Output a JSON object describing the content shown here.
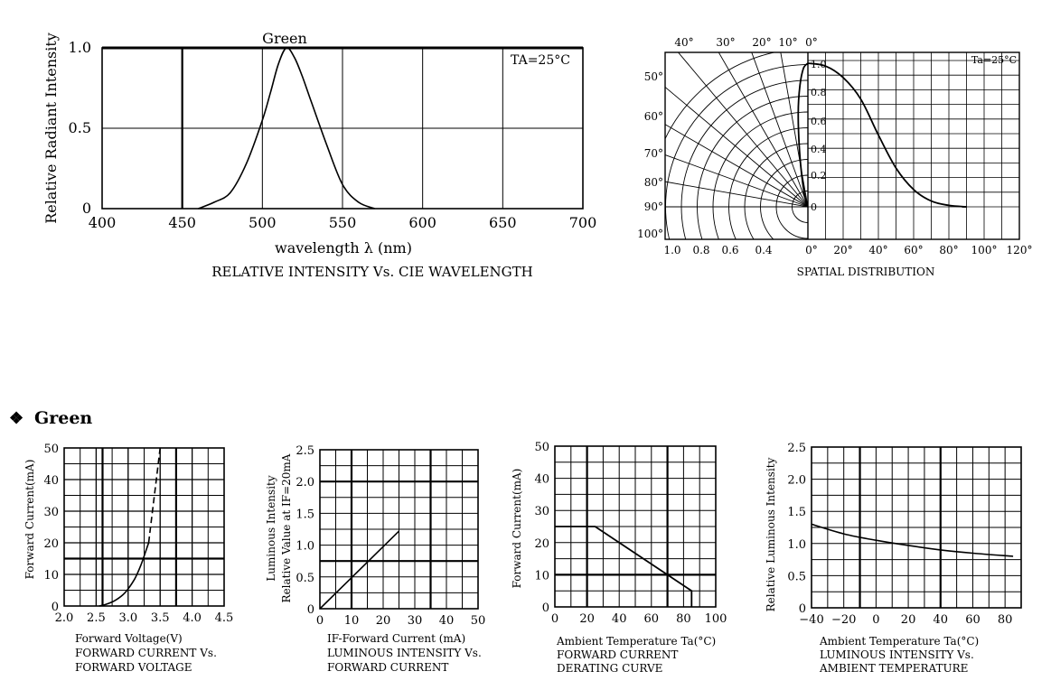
{
  "section_heading": {
    "bullet": "❖",
    "label": "Green"
  },
  "chart_data": [
    {
      "id": "spectrum",
      "type": "line",
      "title": "RELATIVE INTENSITY Vs. CIE WAVELENGTH",
      "series_label": "Green",
      "condition": "TA=25°C",
      "xlabel": "wavelength λ (nm)",
      "ylabel": "Relative Radiant Intensity",
      "xlim": [
        400,
        700
      ],
      "ylim": [
        0,
        1.0
      ],
      "xticks": [
        "400",
        "450",
        "500",
        "550",
        "600",
        "650",
        "700"
      ],
      "yticks": [
        "0",
        "0.5",
        "1.0"
      ],
      "grid": true,
      "x": [
        460,
        470,
        480,
        490,
        500,
        505,
        510,
        515,
        520,
        525,
        530,
        540,
        550,
        560,
        570
      ],
      "y": [
        0.0,
        0.04,
        0.1,
        0.28,
        0.55,
        0.72,
        0.9,
        1.0,
        0.94,
        0.82,
        0.68,
        0.4,
        0.15,
        0.04,
        0.0
      ]
    },
    {
      "id": "spatial",
      "type": "polar",
      "title": "SPATIAL DISTRIBUTION",
      "condition": "Ta=25°C",
      "angle_labels": [
        "0°",
        "10°",
        "20°",
        "30°",
        "40°",
        "50°",
        "60°",
        "70°",
        "80°",
        "90°",
        "100°"
      ],
      "radial_labels": [
        "0",
        "0.2",
        "0.4",
        "0.6",
        "0.8",
        "1.0"
      ],
      "left_axis_labels": [
        "1.0",
        "0.8",
        "0.6",
        "0.4"
      ],
      "bottom_axis_labels": [
        "0°",
        "20°",
        "40°",
        "60°",
        "80°",
        "100°",
        "120°"
      ],
      "grid": true,
      "angle_deg": [
        0,
        10,
        20,
        30,
        40,
        50,
        60,
        70,
        80,
        90
      ],
      "intensity": [
        1.0,
        0.98,
        0.9,
        0.75,
        0.5,
        0.27,
        0.12,
        0.04,
        0.01,
        0.0
      ]
    },
    {
      "id": "iv",
      "type": "line",
      "caption_lines": [
        "Forward Voltage(V)",
        "FORWARD CURRENT Vs.",
        "FORWARD VOLTAGE"
      ],
      "ylabel": "Forward Current(mA)",
      "xlim": [
        2.0,
        4.5
      ],
      "ylim": [
        0,
        50
      ],
      "xticks": [
        "2.0",
        "2.5",
        "3.0",
        "3.5",
        "4.0",
        "4.5"
      ],
      "yticks": [
        "0",
        "10",
        "20",
        "30",
        "40",
        "50"
      ],
      "grid": true,
      "solid_series": {
        "x": [
          2.55,
          2.65,
          2.8,
          2.95,
          3.1,
          3.2,
          3.27,
          3.32
        ],
        "y": [
          0,
          0.5,
          1.8,
          4.2,
          8.5,
          13,
          17,
          20
        ]
      },
      "dashed_series": {
        "x": [
          3.32,
          3.38,
          3.44,
          3.5
        ],
        "y": [
          20,
          30,
          40,
          50
        ]
      }
    },
    {
      "id": "li",
      "type": "line",
      "caption_lines": [
        "IF-Forward Current (mA)",
        "LUMINOUS INTENSITY Vs.",
        "FORWARD CURRENT"
      ],
      "ylabel_lines": [
        "Luminous Intensity",
        "Relative Value at IF=20mA"
      ],
      "xlim": [
        0,
        50
      ],
      "ylim": [
        0,
        2.5
      ],
      "xticks": [
        "0",
        "10",
        "20",
        "30",
        "40",
        "50"
      ],
      "yticks": [
        "0",
        "0.5",
        "1.0",
        "1.5",
        "2.0",
        "2.5"
      ],
      "grid": true,
      "x": [
        0,
        25
      ],
      "y": [
        0,
        1.22
      ]
    },
    {
      "id": "derating",
      "type": "line",
      "caption_lines": [
        "Ambient Temperature Ta(°C)",
        "FORWARD CURRENT",
        "DERATING CURVE"
      ],
      "ylabel": "Forward Current(mA)",
      "xlim": [
        0,
        100
      ],
      "ylim": [
        0,
        50
      ],
      "xticks": [
        "0",
        "20",
        "40",
        "60",
        "80",
        "100"
      ],
      "yticks": [
        "0",
        "10",
        "20",
        "30",
        "40",
        "50"
      ],
      "grid": true,
      "x": [
        0,
        25,
        85,
        85
      ],
      "y": [
        25,
        25,
        5,
        0
      ]
    },
    {
      "id": "temp",
      "type": "line",
      "caption_lines": [
        "Ambient Temperature Ta(°C)",
        "LUMINOUS INTENSITY Vs.",
        "AMBIENT TEMPERATURE"
      ],
      "ylabel": "Relative Luminous Intensity",
      "xlim": [
        -40,
        90
      ],
      "ylim": [
        0,
        2.5
      ],
      "xticks": [
        "−40",
        "−20",
        "0",
        "20",
        "40",
        "60",
        "80"
      ],
      "yticks": [
        "0",
        "0.5",
        "1.0",
        "1.5",
        "2.0",
        "2.5"
      ],
      "grid": true,
      "x": [
        -40,
        -20,
        0,
        20,
        40,
        60,
        85
      ],
      "y": [
        1.3,
        1.15,
        1.05,
        0.97,
        0.9,
        0.85,
        0.8
      ]
    }
  ]
}
